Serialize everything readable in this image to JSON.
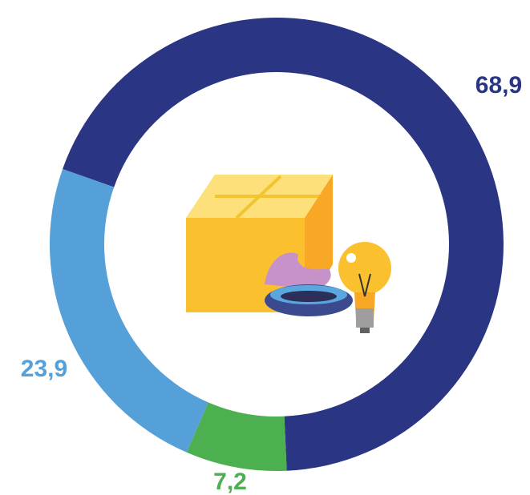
{
  "chart_data": {
    "type": "donut",
    "values": [
      68.9,
      7.2,
      23.9
    ],
    "value_labels": [
      "68,9",
      "7,2",
      "23,9"
    ],
    "colors": [
      "#2a3584",
      "#4caf50",
      "#55a0d8"
    ]
  }
}
